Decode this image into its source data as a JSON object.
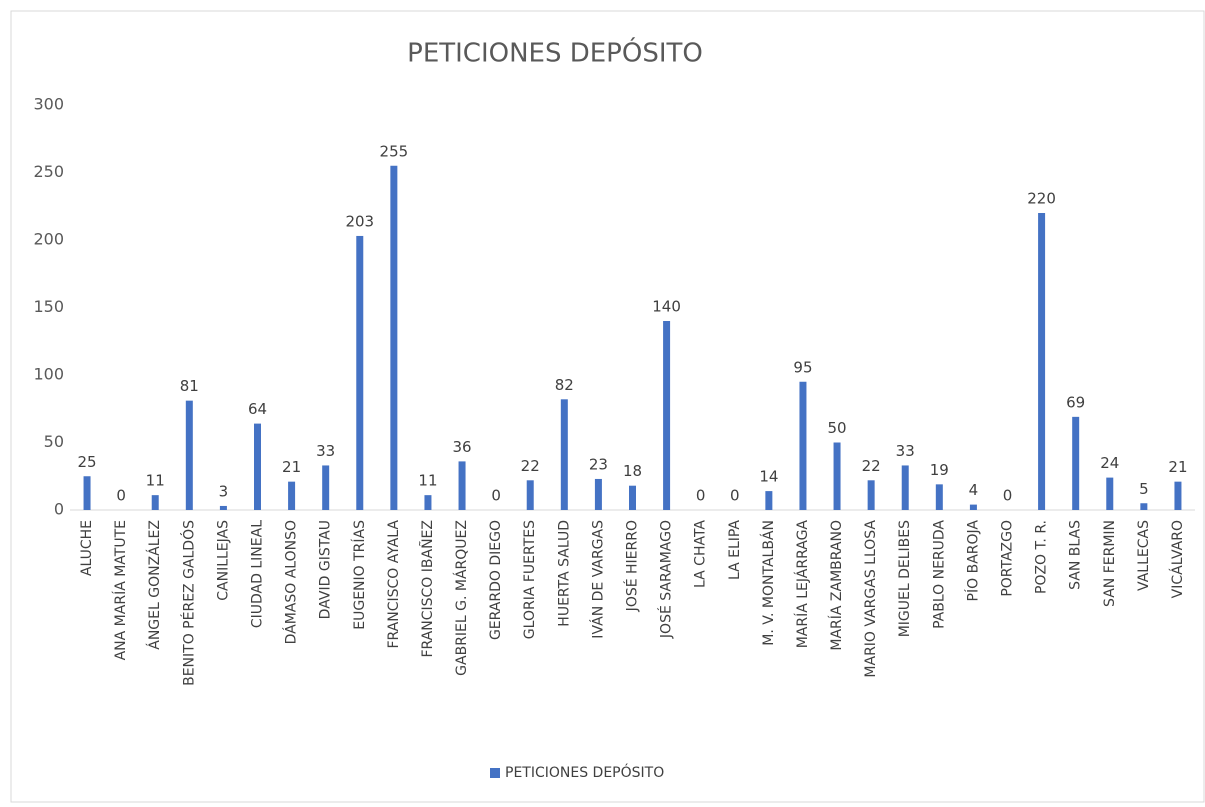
{
  "chart_data": {
    "type": "bar",
    "title": "PETICIONES DEPÓSITO",
    "categories": [
      "ALUCHE",
      "ANA MARÍA MATUTE",
      "ÁNGEL GONZÁLEZ",
      "BENITO PÉREZ GALDÓS",
      "CANILLEJAS",
      "CIUDAD LINEAL",
      "DÁMASO ALONSO",
      "DAVID GISTAU",
      "EUGENIO TRÍAS",
      "FRANCISCO AYALA",
      "FRANCISCO IBAÑEZ",
      "GABRIEL G. MÁRQUEZ",
      "GERARDO DIEGO",
      "GLORIA FUERTES",
      "HUERTA SALUD",
      "IVÁN DE VARGAS",
      "JOSÉ HIERRO",
      "JOSÉ SARAMAGO",
      "LA CHATA",
      "LA ELIPA",
      "M. V. MONTALBÁN",
      "MARÍA LEJÁRRAGA",
      "MARÍA ZAMBRANO",
      "MARIO VARGAS LLOSA",
      "MIGUEL DELIBES",
      "PABLO NERUDA",
      "PÍO BAROJA",
      "PORTAZGO",
      "POZO T. R.",
      "SAN BLAS",
      "SAN FERMIN",
      "VALLECAS",
      "VICÁLVARO"
    ],
    "series": [
      {
        "name": "PETICIONES DEPÓSITO",
        "color": "#4472c4",
        "values": [
          25,
          0,
          11,
          81,
          3,
          64,
          21,
          33,
          203,
          255,
          11,
          36,
          0,
          22,
          82,
          23,
          18,
          140,
          0,
          0,
          14,
          95,
          50,
          22,
          33,
          19,
          4,
          0,
          220,
          69,
          24,
          5,
          21
        ]
      }
    ],
    "ylim": [
      0,
      300
    ],
    "yticks": [
      0,
      50,
      100,
      150,
      200,
      250,
      300
    ],
    "grid": false,
    "legend": "bottom"
  }
}
